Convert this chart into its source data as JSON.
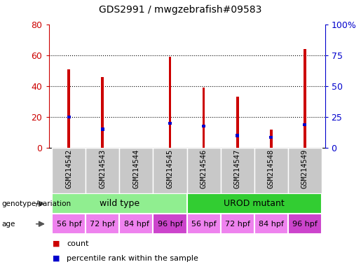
{
  "title": "GDS2991 / mwgzebrafish#09583",
  "samples": [
    "GSM214542",
    "GSM214543",
    "GSM214544",
    "GSM214545",
    "GSM214546",
    "GSM214547",
    "GSM214548",
    "GSM214549"
  ],
  "counts": [
    51,
    46,
    0,
    59,
    39,
    33,
    12,
    64
  ],
  "percentile_ranks": [
    20,
    12,
    0,
    16,
    14,
    8,
    7,
    15
  ],
  "ylim_left": [
    0,
    80
  ],
  "ylim_right": [
    0,
    100
  ],
  "yticks_left": [
    0,
    20,
    40,
    60,
    80
  ],
  "yticks_right": [
    0,
    25,
    50,
    75,
    100
  ],
  "yticklabels_right": [
    "0",
    "25",
    "50",
    "75",
    "100%"
  ],
  "genotype_groups": [
    {
      "label": "wild type",
      "start": 0,
      "end": 4,
      "color": "#90EE90"
    },
    {
      "label": "UROD mutant",
      "start": 4,
      "end": 8,
      "color": "#32CD32"
    }
  ],
  "age_labels": [
    "56 hpf",
    "72 hpf",
    "84 hpf",
    "96 hpf",
    "56 hpf",
    "72 hpf",
    "84 hpf",
    "96 hpf"
  ],
  "age_colors": [
    "#EE82EE",
    "#EE82EE",
    "#EE82EE",
    "#CC44CC",
    "#EE82EE",
    "#EE82EE",
    "#EE82EE",
    "#CC44CC"
  ],
  "bar_color": "#CC0000",
  "blue_color": "#0000CC",
  "label_color_left": "#CC0000",
  "label_color_right": "#0000CC",
  "legend_items": [
    {
      "label": "count",
      "color": "#CC0000"
    },
    {
      "label": "percentile rank within the sample",
      "color": "#0000CC"
    }
  ],
  "bar_width": 0.08,
  "bg_color": "#C8C8C8",
  "tick_label_size": 7.5
}
